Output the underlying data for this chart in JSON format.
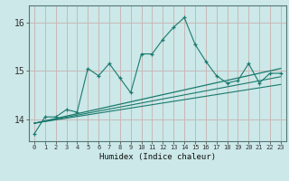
{
  "title": "",
  "xlabel": "Humidex (Indice chaleur)",
  "bg_color": "#cce8e8",
  "grid_color": "#c8b8b8",
  "line_color": "#1a7a6e",
  "x_ticks": [
    0,
    1,
    2,
    3,
    4,
    5,
    6,
    7,
    8,
    9,
    10,
    11,
    12,
    13,
    14,
    15,
    16,
    17,
    18,
    19,
    20,
    21,
    22,
    23
  ],
  "y_ticks": [
    14,
    15,
    16
  ],
  "ylim": [
    13.55,
    16.35
  ],
  "xlim": [
    -0.5,
    23.5
  ],
  "line1_x": [
    0,
    1,
    2,
    3,
    4,
    5,
    6,
    7,
    8,
    9,
    10,
    11,
    12,
    13,
    14,
    15,
    16,
    17,
    18,
    19,
    20,
    21,
    22,
    23
  ],
  "line1_y": [
    13.7,
    14.05,
    14.05,
    14.2,
    14.15,
    15.05,
    14.9,
    15.15,
    14.85,
    14.55,
    15.35,
    15.35,
    15.65,
    15.9,
    16.1,
    15.55,
    15.2,
    14.9,
    14.75,
    14.8,
    15.15,
    14.75,
    14.95,
    14.95
  ],
  "line2_x": [
    0,
    23
  ],
  "line2_y": [
    13.92,
    15.05
  ],
  "line3_x": [
    0,
    23
  ],
  "line3_y": [
    13.92,
    14.88
  ],
  "line4_x": [
    0,
    23
  ],
  "line4_y": [
    13.92,
    14.72
  ]
}
